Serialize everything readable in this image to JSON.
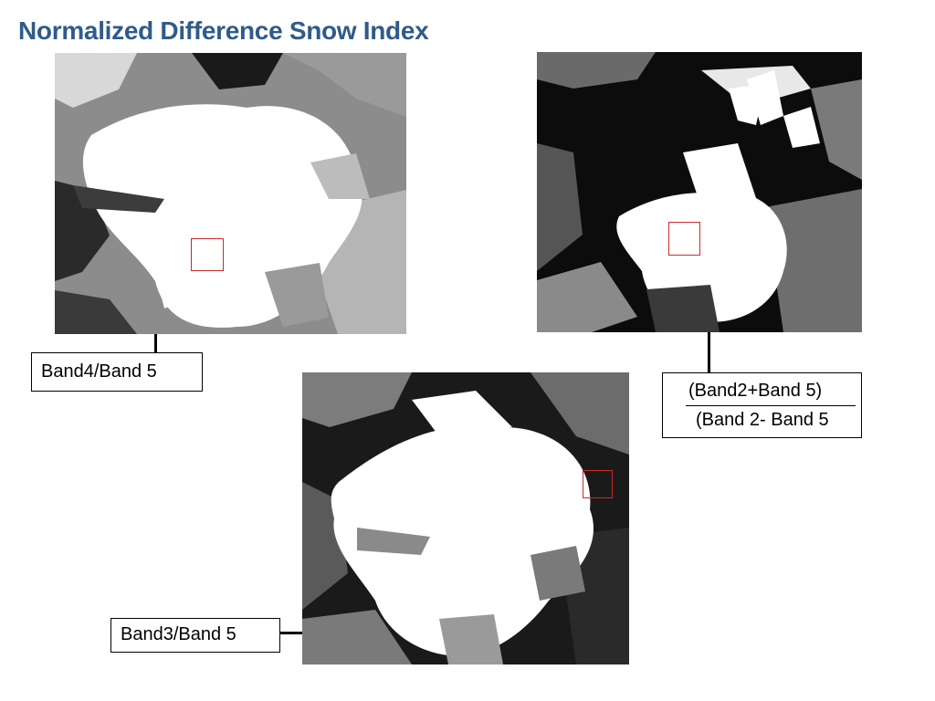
{
  "slide": {
    "title": "Normalized Difference Snow Index"
  },
  "panels": [
    {
      "id": "top-left",
      "label": "Band4/Band 5"
    },
    {
      "id": "bottom",
      "label": "Band3/Band 5"
    },
    {
      "id": "top-right",
      "numerator": "(Band2+Band 5)",
      "denominator": "(Band 2- Band 5"
    }
  ],
  "colors": {
    "title": "#2f5b8a",
    "roi_box": "#cc2a2a"
  }
}
